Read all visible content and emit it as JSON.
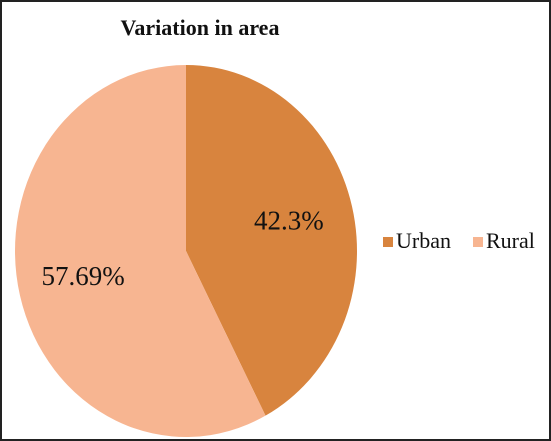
{
  "chart_data": {
    "type": "pie",
    "title": "Variation in area",
    "categories": [
      "Urban",
      "Rural"
    ],
    "values": [
      42.3,
      57.69
    ],
    "value_labels": [
      "42.3%",
      "57.69%"
    ],
    "colors": [
      "#d8843e",
      "#f7b591"
    ],
    "legend": "right"
  }
}
